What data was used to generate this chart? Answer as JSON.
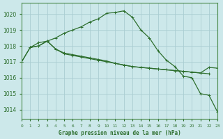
{
  "background_color": "#cce8ea",
  "grid_color": "#aacdd2",
  "line_color": "#2d6e2d",
  "x_min": 0,
  "x_max": 23,
  "y_min": 1013.4,
  "y_max": 1020.7,
  "yticks": [
    1014,
    1015,
    1016,
    1017,
    1018,
    1019,
    1020
  ],
  "xlabel": "Graphe pression niveau de la mer (hPa)",
  "line1": {
    "x": [
      0,
      1,
      2,
      3,
      4,
      5,
      6,
      7,
      8,
      9,
      10,
      11,
      12,
      13,
      14,
      15,
      16,
      17,
      18,
      19,
      20,
      21,
      22
    ],
    "y": [
      1017.0,
      1017.9,
      1018.0,
      1018.3,
      1017.8,
      1017.5,
      1017.4,
      1017.3,
      1017.2,
      1017.1,
      1017.0,
      1016.9,
      1016.8,
      1016.7,
      1016.65,
      1016.6,
      1016.55,
      1016.5,
      1016.45,
      1016.4,
      1016.35,
      1016.3,
      1016.25
    ]
  },
  "line2": {
    "x": [
      1,
      2,
      3,
      4,
      5,
      6,
      7,
      8,
      9,
      10,
      11,
      12,
      13,
      14,
      15,
      16,
      17,
      18,
      19,
      20,
      21,
      22,
      23
    ],
    "y": [
      1017.9,
      1018.2,
      1018.3,
      1017.8,
      1017.55,
      1017.45,
      1017.35,
      1017.25,
      1017.15,
      1017.05,
      1016.9,
      1016.8,
      1016.7,
      1016.65,
      1016.6,
      1016.55,
      1016.5,
      1016.45,
      1016.4,
      1016.35,
      1016.3,
      1016.65,
      1016.6
    ]
  },
  "line3": {
    "x": [
      0,
      1,
      2,
      3,
      4,
      5,
      6,
      7,
      8,
      9,
      10,
      11,
      12,
      13,
      14,
      15,
      16,
      17,
      18,
      19,
      20,
      21,
      22,
      23
    ],
    "y": [
      1017.0,
      1017.9,
      1018.0,
      1018.3,
      1018.5,
      1018.8,
      1019.0,
      1019.2,
      1019.5,
      1019.7,
      1020.05,
      1020.1,
      1020.2,
      1019.8,
      1019.0,
      1018.5,
      1017.7,
      1017.1,
      1016.7,
      1016.1,
      1016.0,
      1015.0,
      1014.9,
      1013.85
    ]
  }
}
